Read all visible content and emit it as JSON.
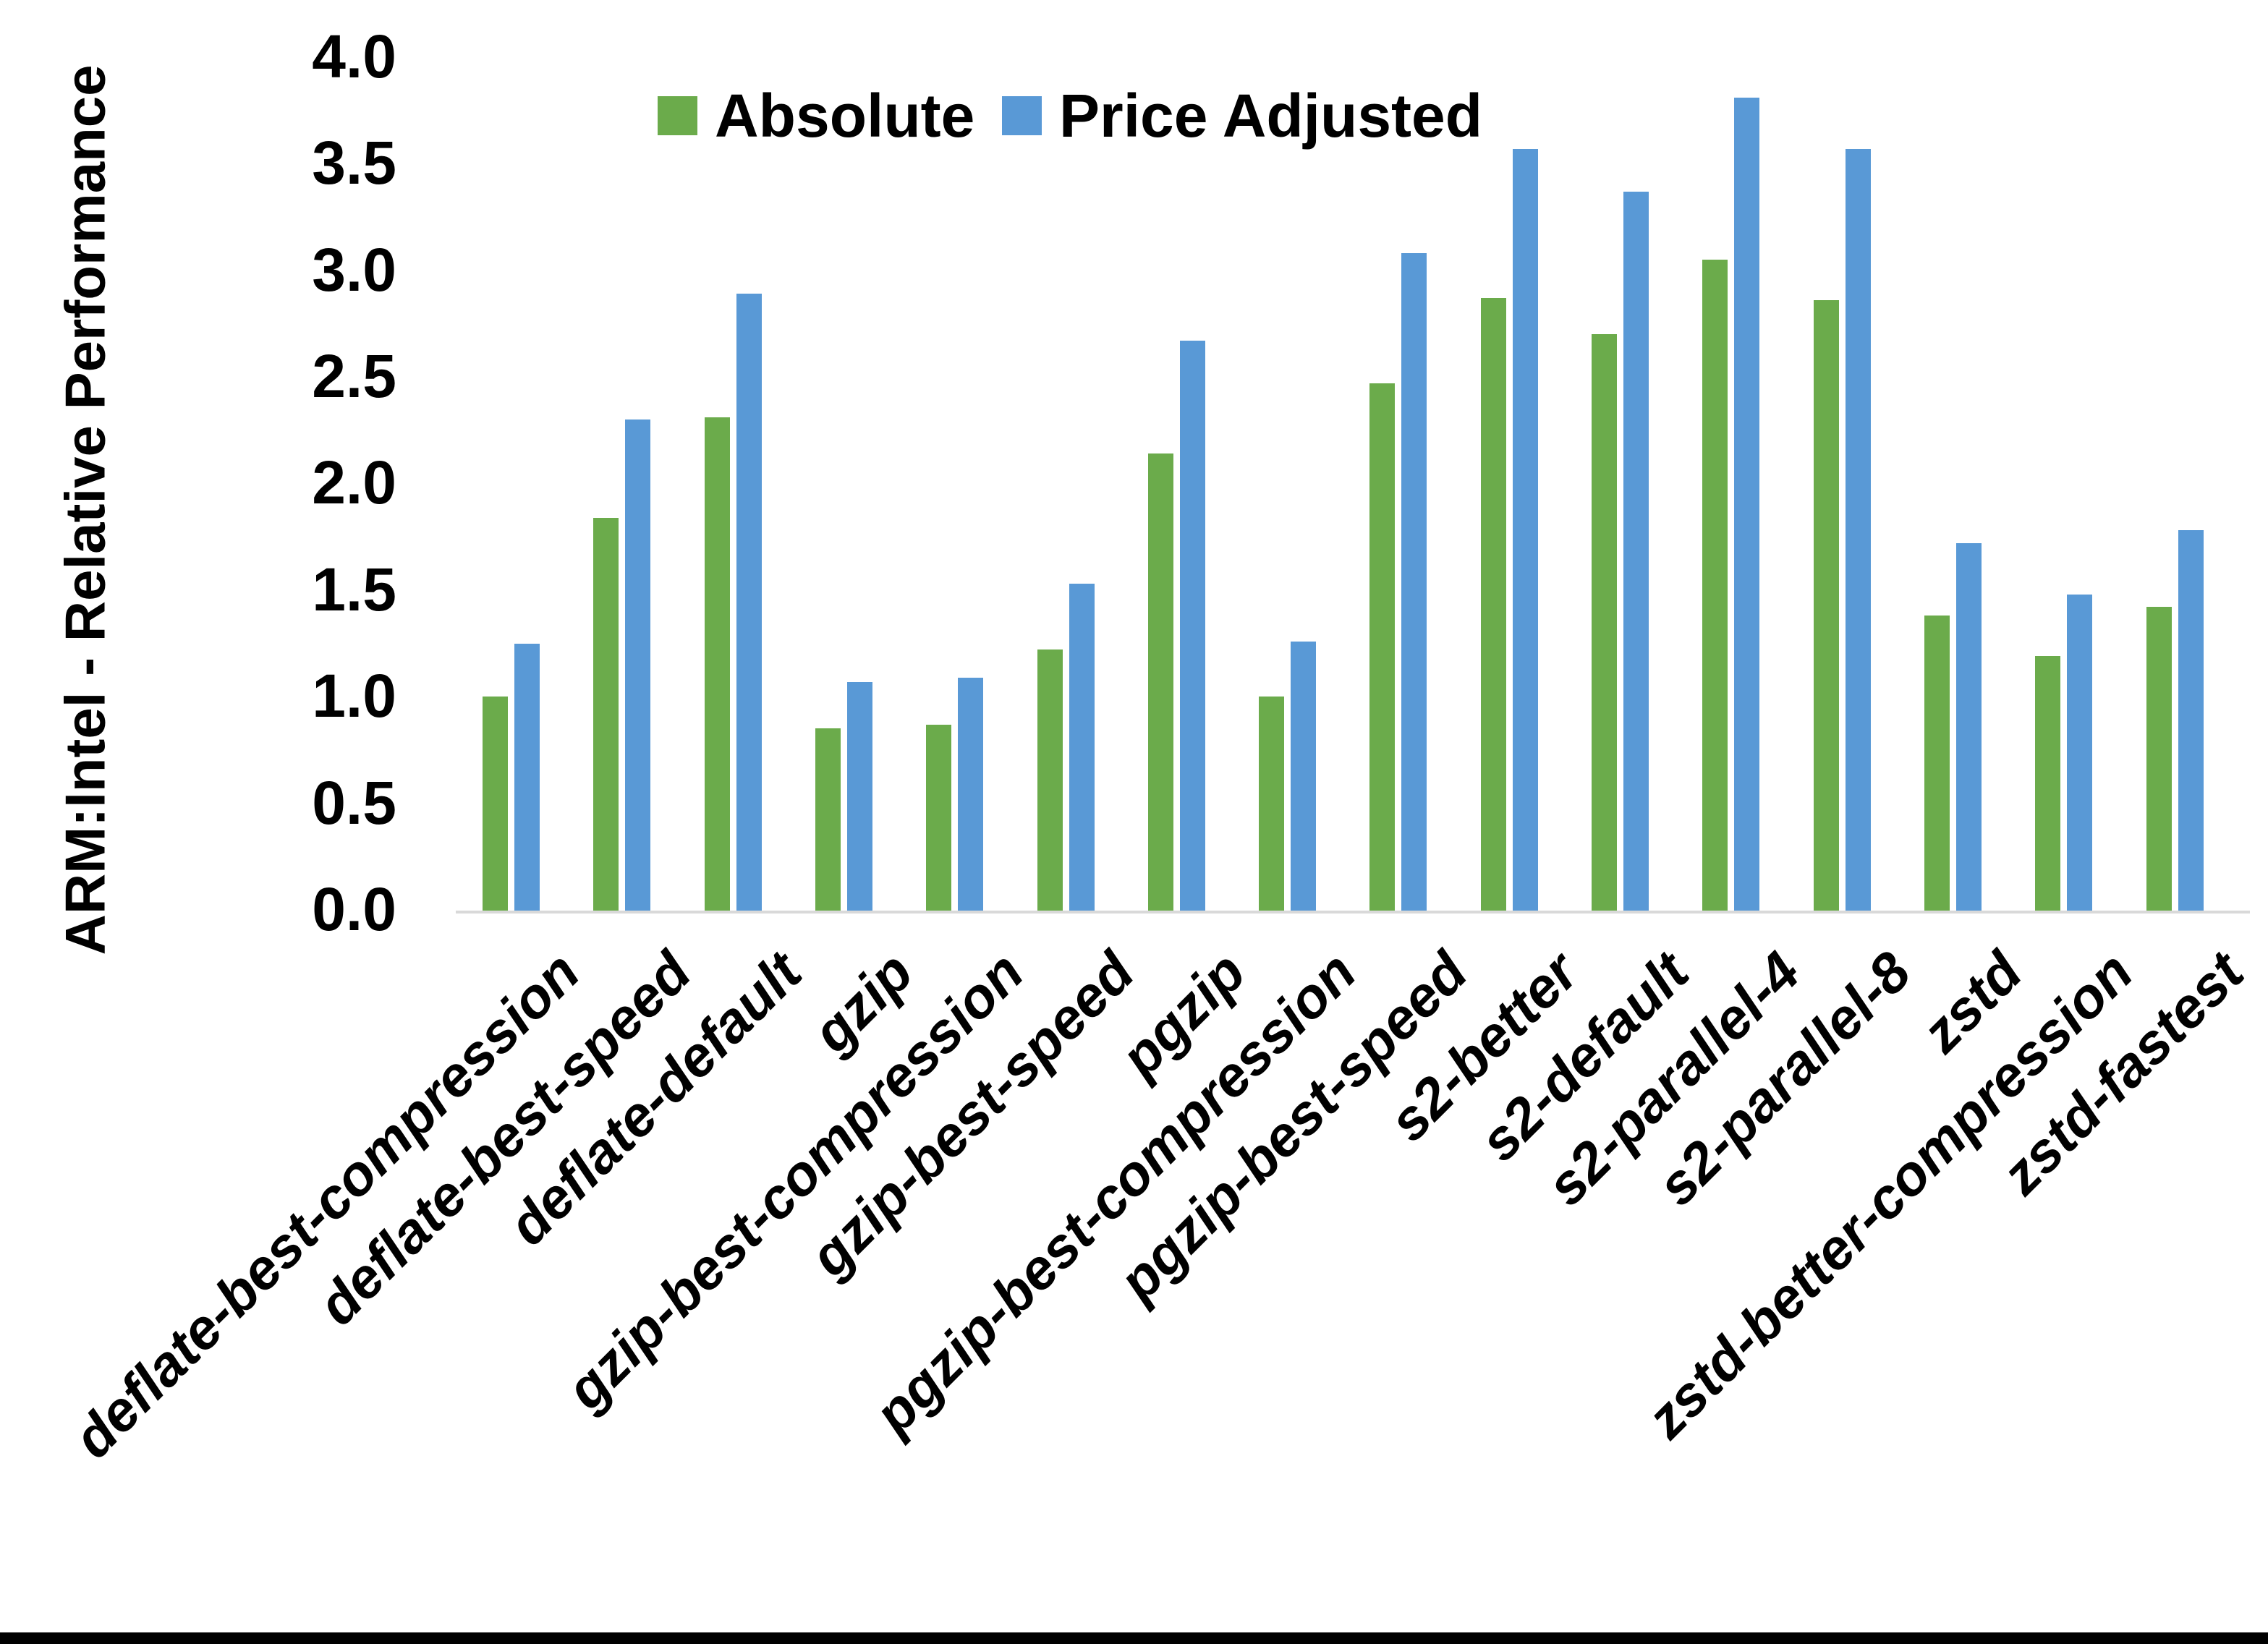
{
  "figure": {
    "background": "#FFFFFF",
    "axis_line_color": "#D9D9D9",
    "bottom_border_color": "#000000"
  },
  "legend": {
    "items": [
      {
        "label": "Absolute",
        "color": "#6BAB4B"
      },
      {
        "label": "Price Adjusted",
        "color": "#5999D6"
      }
    ]
  },
  "chart_data": {
    "type": "bar",
    "title": "",
    "xlabel": "",
    "ylabel": "ARM:Intel - Relative Performance",
    "ylim": [
      0.0,
      4.0
    ],
    "ytick_step": 0.5,
    "y_ticks": [
      "0.0",
      "0.5",
      "1.0",
      "1.5",
      "2.0",
      "2.5",
      "3.0",
      "3.5",
      "4.0"
    ],
    "grid": false,
    "legend_position": "top-center",
    "categories": [
      "deflate-best-compression",
      "deflate-best-speed",
      "deflate-default",
      "gzip",
      "gzip-best-compression",
      "gzip-best-speed",
      "pgzip",
      "pgzip-best-compression",
      "pgzip-best-speed",
      "s2-better",
      "s2-default",
      "s2-parallel-4",
      "s2-parallel-8",
      "zstd",
      "zstd-better-compression",
      "zstd-fastest"
    ],
    "series": [
      {
        "name": "Absolute",
        "color": "#6BAB4B",
        "values": [
          1.01,
          1.85,
          2.32,
          0.86,
          0.88,
          1.23,
          2.15,
          1.01,
          2.48,
          2.88,
          2.71,
          3.06,
          2.87,
          1.39,
          1.2,
          1.43
        ]
      },
      {
        "name": "Price Adjusted",
        "color": "#5999D6",
        "values": [
          1.26,
          2.31,
          2.9,
          1.08,
          1.1,
          1.54,
          2.68,
          1.27,
          3.09,
          3.58,
          3.38,
          3.82,
          3.58,
          1.73,
          1.49,
          1.79
        ]
      }
    ]
  }
}
